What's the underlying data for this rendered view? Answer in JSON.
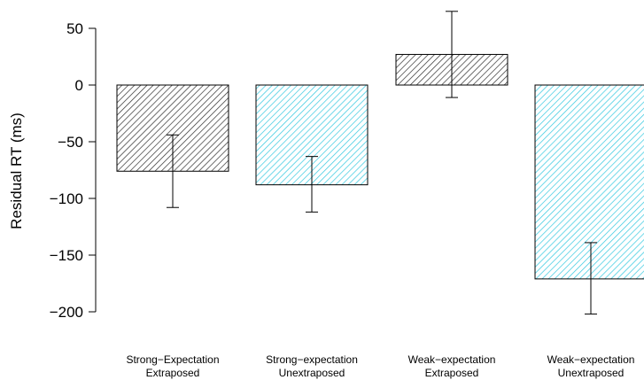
{
  "chart_data": {
    "type": "bar",
    "title": "",
    "xlabel": "",
    "ylabel": "Residual RT (ms)",
    "ylim": [
      -200,
      50
    ],
    "yticks": [
      50,
      0,
      -50,
      -100,
      -150,
      -200
    ],
    "grid": false,
    "categories": [
      [
        "Strong−Expectation",
        "Extraposed"
      ],
      [
        "Strong−expectation",
        "Unextraposed"
      ],
      [
        "Weak−expectation",
        "Extraposed"
      ],
      [
        "Weak−expectation",
        "Unextraposed"
      ]
    ],
    "values": [
      -76,
      -88,
      27,
      -171
    ],
    "error_low": [
      -108,
      -112,
      -11,
      -202
    ],
    "error_high": [
      -44,
      -63,
      65,
      -139
    ],
    "fill": "hatched",
    "colors": [
      "#303030",
      "#33c8e0",
      "#303030",
      "#33c8e0"
    ]
  }
}
